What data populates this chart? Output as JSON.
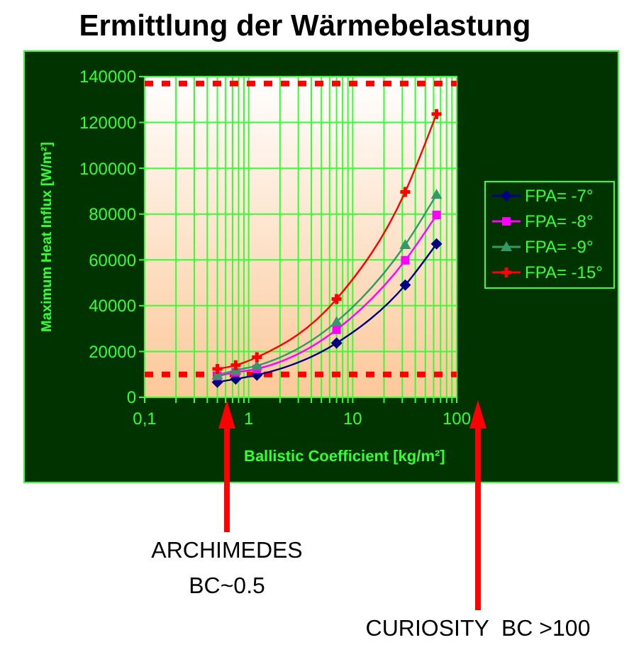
{
  "chart_data": {
    "type": "line",
    "title": "Ermittlung der Wärmebelastung",
    "xlabel": "Ballistic Coefficient [kg/m²]",
    "ylabel": "Maximum Heat Influx [W/m²]",
    "log": "x",
    "xlim": [
      0.1,
      100
    ],
    "ylim": [
      0,
      140000
    ],
    "xticks": [
      {
        "value": 0.1,
        "label": "0,1"
      },
      {
        "value": 0.2,
        "label": null
      },
      {
        "value": 0.3,
        "label": null
      },
      {
        "value": 0.4,
        "label": null
      },
      {
        "value": 0.5,
        "label": null
      },
      {
        "value": 0.6,
        "label": null
      },
      {
        "value": 0.7,
        "label": null
      },
      {
        "value": 0.8,
        "label": null
      },
      {
        "value": 0.9,
        "label": null
      },
      1,
      {
        "value": 2,
        "label": null
      },
      {
        "value": 3,
        "label": null
      },
      {
        "value": 4,
        "label": null
      },
      {
        "value": 5,
        "label": null
      },
      {
        "value": 6,
        "label": null
      },
      {
        "value": 7,
        "label": null
      },
      {
        "value": 8,
        "label": null
      },
      {
        "value": 9,
        "label": null
      },
      10,
      {
        "value": 20,
        "label": null
      },
      {
        "value": 30,
        "label": null
      },
      {
        "value": 40,
        "label": null
      },
      {
        "value": 50,
        "label": null
      },
      {
        "value": 60,
        "label": null
      },
      {
        "value": 70,
        "label": null
      },
      {
        "value": 80,
        "label": null
      },
      {
        "value": 90,
        "label": null
      },
      100
    ],
    "yticks": [
      0,
      20000,
      40000,
      60000,
      80000,
      100000,
      120000,
      140000
    ],
    "grid": true,
    "legend": "right",
    "x": [
      0.5,
      0.75,
      1.2,
      7,
      32,
      64
    ],
    "series": [
      {
        "name": "FPA= -7°",
        "color": "#000080",
        "marker": "diamond",
        "values": [
          6600,
          8000,
          9700,
          23700,
          49000,
          67000
        ]
      },
      {
        "name": "FPA= -8°",
        "color": "#ff00ff",
        "marker": "square",
        "values": [
          9300,
          10900,
          12400,
          29500,
          59800,
          79600
        ]
      },
      {
        "name": "FPA= -9°",
        "color": "#339966",
        "marker": "triangle",
        "values": [
          9700,
          11800,
          13800,
          33000,
          66600,
          88500
        ]
      },
      {
        "name": "FPA= -15°",
        "color": "#ff0000",
        "marker": "cross",
        "values": [
          12400,
          14000,
          17500,
          42900,
          89700,
          123700
        ]
      }
    ],
    "ref_lines": [
      {
        "axis": "y",
        "value": 137000,
        "color": "#ff0000",
        "line_style": "dotted"
      },
      {
        "axis": "y",
        "value": 10000,
        "color": "#ff0000",
        "line_style": "dotted"
      }
    ],
    "annotations": [
      "ARCHIMEDES\nBC~0.5",
      "CURIOSITY  BC >100"
    ]
  }
}
